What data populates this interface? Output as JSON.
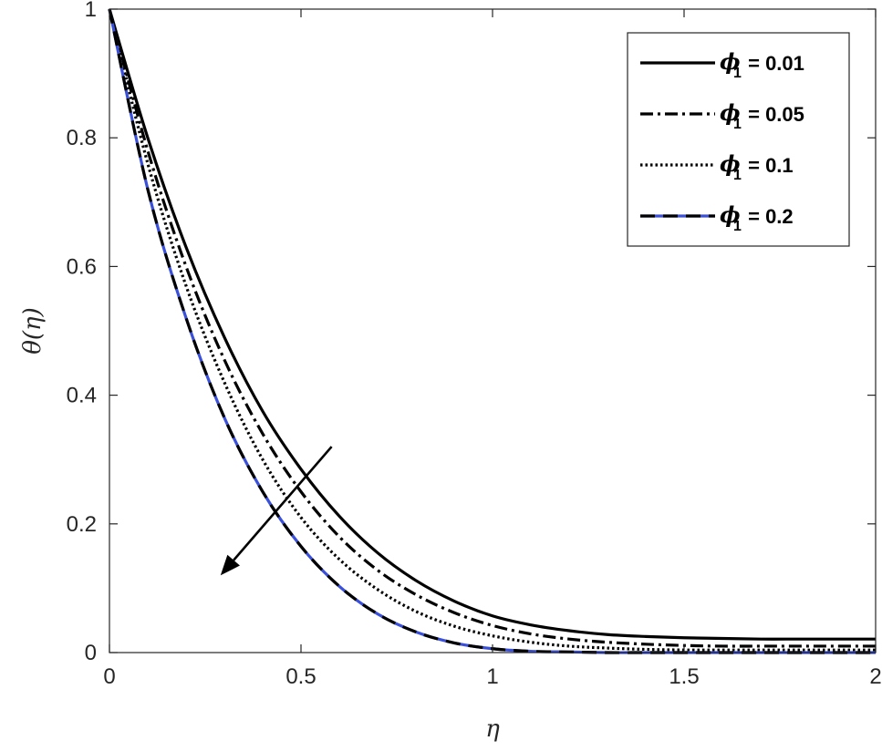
{
  "chart_data": {
    "type": "line",
    "xlabel": "η",
    "ylabel": "θ(η)",
    "xlim": [
      0,
      2
    ],
    "ylim": [
      0,
      1
    ],
    "xticks": [
      "0",
      "0.5",
      "1",
      "1.5",
      "2"
    ],
    "yticks": [
      "0",
      "0.2",
      "0.4",
      "0.6",
      "0.8",
      "1"
    ],
    "legend_position": "top-right",
    "x": [
      0,
      0.1,
      0.2,
      0.3,
      0.4,
      0.5,
      0.6,
      0.7,
      0.8,
      0.9,
      1.0,
      1.1,
      1.2,
      1.3,
      1.4,
      1.5,
      1.6,
      1.7,
      1.8,
      1.9,
      2.0
    ],
    "series": [
      {
        "name": "φ1 = 0.01",
        "legend_symbol": "ϕ",
        "legend_sub": "1",
        "legend_value": " = 0.01",
        "style": "solid",
        "color": "#000000",
        "values": [
          1.0,
          0.8,
          0.63,
          0.49,
          0.375,
          0.285,
          0.212,
          0.155,
          0.112,
          0.08,
          0.057,
          0.043,
          0.034,
          0.028,
          0.025,
          0.023,
          0.022,
          0.021,
          0.021,
          0.021,
          0.021
        ]
      },
      {
        "name": "φ1 = 0.05",
        "legend_symbol": "ϕ",
        "legend_sub": "1",
        "legend_value": " = 0.05",
        "style": "dashdot",
        "color": "#000000",
        "values": [
          1.0,
          0.78,
          0.6,
          0.455,
          0.34,
          0.25,
          0.18,
          0.128,
          0.09,
          0.062,
          0.042,
          0.029,
          0.021,
          0.016,
          0.013,
          0.011,
          0.01,
          0.01,
          0.01,
          0.01,
          0.01
        ]
      },
      {
        "name": "φ1 = 0.1",
        "legend_symbol": "ϕ",
        "legend_sub": "1",
        "legend_value": " = 0.1",
        "style": "dotted",
        "color": "#000000",
        "values": [
          1.0,
          0.76,
          0.57,
          0.42,
          0.3,
          0.21,
          0.145,
          0.098,
          0.064,
          0.041,
          0.026,
          0.016,
          0.01,
          0.007,
          0.005,
          0.004,
          0.004,
          0.004,
          0.004,
          0.004,
          0.004
        ]
      },
      {
        "name": "φ1 = 0.2",
        "legend_symbol": "ϕ",
        "legend_sub": "1",
        "legend_value": " = 0.2",
        "style": "dashed-blue",
        "color": "#000000",
        "accent": "#3a50d9",
        "values": [
          1.0,
          0.72,
          0.52,
          0.365,
          0.25,
          0.165,
          0.103,
          0.06,
          0.032,
          0.015,
          0.006,
          0.002,
          0.001,
          0.0,
          0.0,
          0.0,
          0.0,
          0.0,
          0.0,
          0.0,
          0.0
        ]
      }
    ],
    "annotation": {
      "type": "arrow",
      "direction": "decreasing",
      "from": [
        0.58,
        0.32
      ],
      "to": [
        0.29,
        0.12
      ]
    }
  }
}
